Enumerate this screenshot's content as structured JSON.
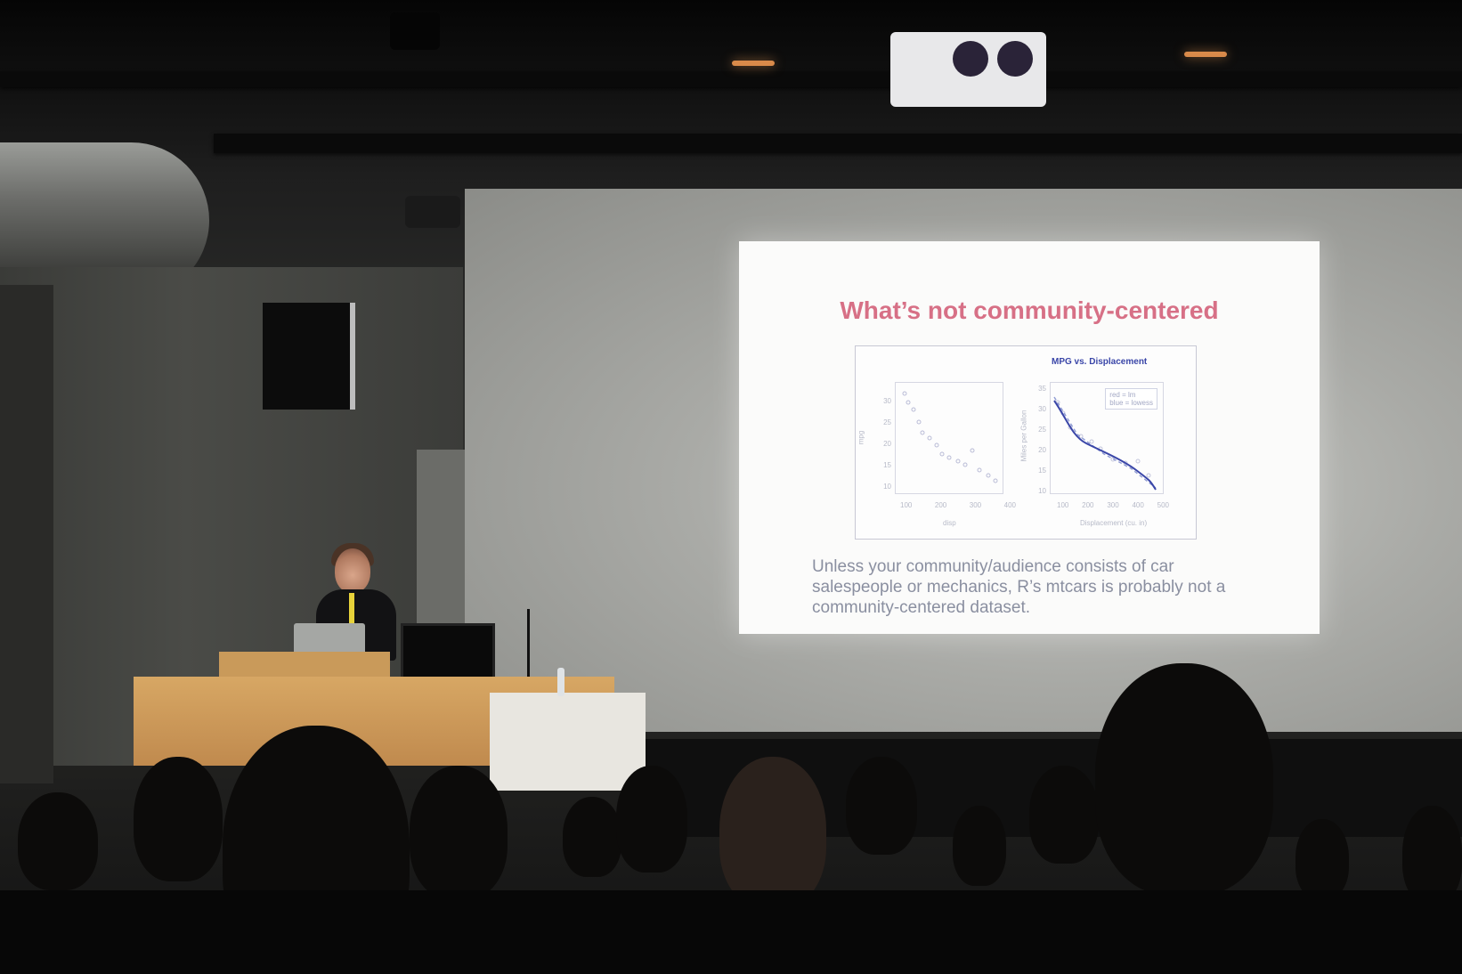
{
  "slide": {
    "title": "What’s not community-centered",
    "chart": {
      "title": "MPG vs. Displacement",
      "left_xlabel": "disp",
      "left_ylabel": "mpg",
      "right_xlabel": "Displacement (cu. in)",
      "right_ylabel": "Miles per Gallon",
      "left_xticks": [
        "100",
        "200",
        "300",
        "400"
      ],
      "left_yticks": [
        "30",
        "25",
        "20",
        "15",
        "10"
      ],
      "right_xticks": [
        "100",
        "200",
        "300",
        "400",
        "500"
      ],
      "right_yticks": [
        "35",
        "30",
        "25",
        "20",
        "15",
        "10"
      ],
      "legend": [
        "red = lm",
        "blue = lowess"
      ]
    },
    "caption_lines": [
      "Unless your community/audience consists of car",
      "salespeople or mechanics, R’s mtcars is probably not a",
      "community-centered dataset."
    ]
  },
  "colors": {
    "title_pink": "#d77086",
    "chart_blue": "#3a46a8",
    "caption_gray": "#8a8fa0"
  }
}
